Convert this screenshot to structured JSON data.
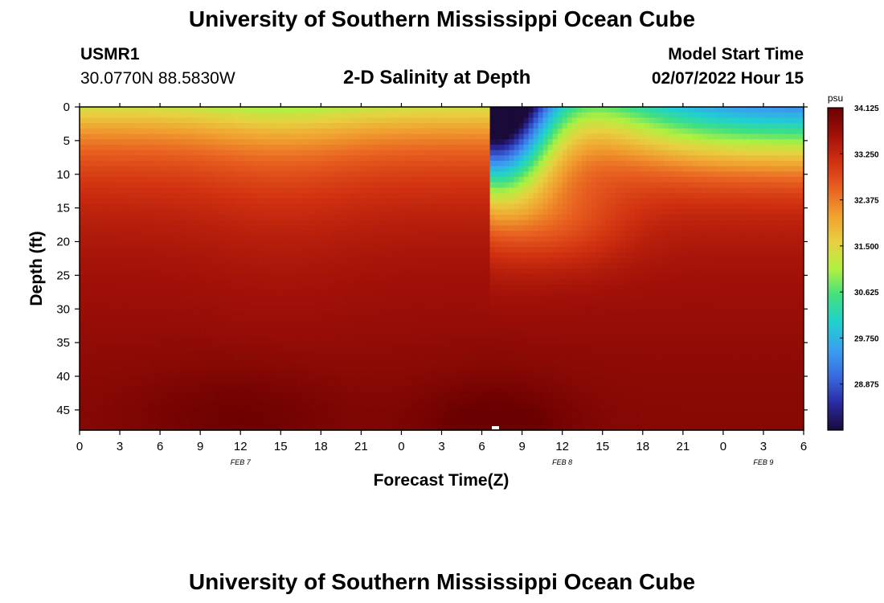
{
  "page": {
    "title": "University of Southern Mississippi Ocean Cube",
    "title_repeat": "University of Southern Mississippi Ocean Cube",
    "station_id": "USMR1",
    "station_coords": "30.0770N  88.5830W",
    "plot_title": "2-D Salinity at Depth",
    "model_start_label": "Model Start Time",
    "model_start_value": "02/07/2022 Hour 15"
  },
  "chart_data": {
    "type": "heatmap",
    "title": "2-D Salinity at Depth",
    "xlabel": "Forecast Time(Z)",
    "ylabel": "Depth (ft)",
    "x_ticks": [
      "0",
      "3",
      "6",
      "9",
      "12",
      "15",
      "18",
      "21",
      "0",
      "3",
      "6",
      "9",
      "12",
      "15",
      "18",
      "21",
      "0",
      "3",
      "6"
    ],
    "x_range_hours": [
      0,
      54
    ],
    "date_labels": [
      {
        "text": "FEB 7",
        "hour": 12
      },
      {
        "text": "FEB 8",
        "hour": 36
      },
      {
        "text": "FEB 9",
        "hour": 51
      }
    ],
    "y_ticks": [
      0,
      5,
      10,
      15,
      20,
      25,
      30,
      35,
      40,
      45
    ],
    "ylim": [
      0,
      48
    ],
    "colorbar": {
      "unit": "psu",
      "labels": [
        "34.125",
        "33.250",
        "32.375",
        "31.500",
        "30.625",
        "29.750",
        "28.875"
      ],
      "min": 28.0,
      "max": 34.125,
      "colors": [
        "#1a0a3a",
        "#2a2aa0",
        "#3a6ae0",
        "#3aa0f0",
        "#20d0d0",
        "#40e080",
        "#b0f040",
        "#e8d040",
        "#f0a030",
        "#e86020",
        "#d03010",
        "#a01008",
        "#6a0000"
      ]
    },
    "surface_fresh_pulse": {
      "center_hour": 31,
      "min_value": 28.0
    },
    "grid": false
  }
}
